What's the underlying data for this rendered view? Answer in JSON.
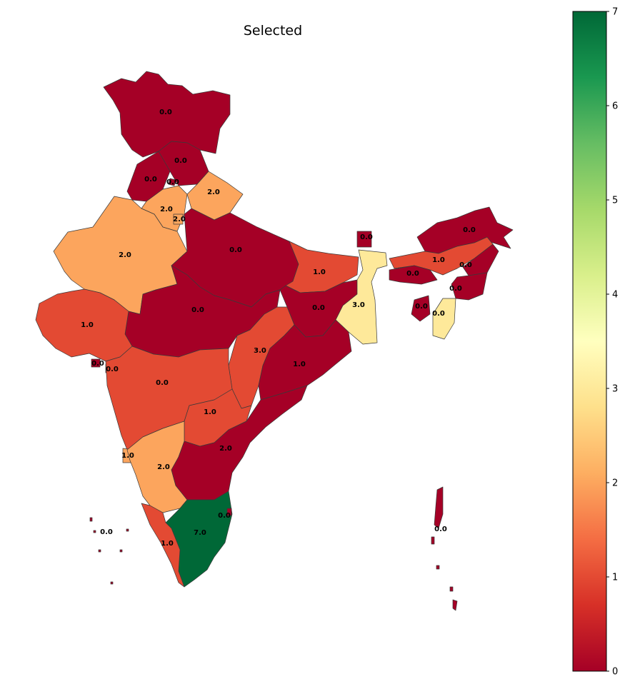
{
  "title": "Selected",
  "colorbar": {
    "min": 0,
    "max": 7,
    "ticks": [
      "0",
      "1",
      "2",
      "3",
      "4",
      "5",
      "6",
      "7"
    ],
    "colormap": "RdYlGn",
    "stops": [
      "#a50026",
      "#d73027",
      "#f46d43",
      "#fdae61",
      "#fee08b",
      "#ffffbf",
      "#d9ef8b",
      "#a6d96a",
      "#66bd63",
      "#1a9850",
      "#006837"
    ]
  },
  "chart_data": {
    "type": "choropleth",
    "value_labels": [
      "0.0",
      "0.0",
      "0.0",
      "0.0",
      "2.0",
      "2.0",
      "2.0",
      "2.0",
      "0.0",
      "0.0",
      "0.0",
      "1.0",
      "0.0",
      "1.0",
      "0.0",
      "0.0",
      "0.0",
      "0.0",
      "0.0",
      "3.0",
      "3.0",
      "1.0",
      "1.0",
      "0.0",
      "0.0",
      "0.0",
      "1.0",
      "1.0",
      "2.0",
      "2.0",
      "0.0",
      "7.0",
      "0.0",
      "1.0",
      "0.0"
    ]
  }
}
